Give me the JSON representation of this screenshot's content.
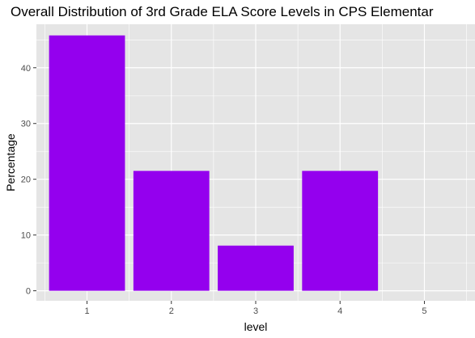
{
  "chart_data": {
    "type": "bar",
    "title": "Overall Distribution of 3rd Grade ELA Score Levels in CPS Elementar",
    "xlabel": "level",
    "ylabel": "Percentage",
    "categories": [
      "1",
      "2",
      "3",
      "4",
      "5"
    ],
    "values": [
      45.8,
      21.5,
      8.1,
      21.5,
      0
    ],
    "ylim": [
      -1.8,
      47.8
    ],
    "yticks": [
      "0",
      "10",
      "20",
      "30",
      "40"
    ],
    "grid": true,
    "bar_color": "#9400EE",
    "panel_background": "#E5E5E5",
    "grid_color": "#FFFFFF"
  }
}
